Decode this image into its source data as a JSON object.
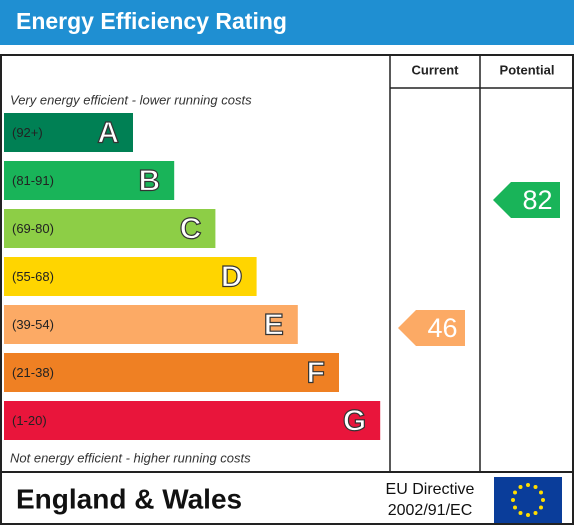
{
  "title": "Energy Efficiency Rating",
  "headers": {
    "current": "Current",
    "potential": "Potential"
  },
  "top_note": "Very energy efficient - lower running costs",
  "bottom_note": "Not energy efficient - higher running costs",
  "bands": [
    {
      "range": "(92+)",
      "letter": "A",
      "color": "#008054"
    },
    {
      "range": "(81-91)",
      "letter": "B",
      "color": "#19b459"
    },
    {
      "range": "(69-80)",
      "letter": "C",
      "color": "#8dce46"
    },
    {
      "range": "(55-68)",
      "letter": "D",
      "color": "#ffd500"
    },
    {
      "range": "(39-54)",
      "letter": "E",
      "color": "#fcaa65"
    },
    {
      "range": "(21-38)",
      "letter": "F",
      "color": "#ef8023"
    },
    {
      "range": "(1-20)",
      "letter": "G",
      "color": "#e9153b"
    }
  ],
  "current": {
    "value": 46,
    "color": "#fcaa65"
  },
  "potential": {
    "value": 82,
    "color": "#19b459"
  },
  "footer": {
    "region": "England & Wales",
    "directive": [
      "EU Directive",
      "2002/91/EC"
    ]
  }
}
